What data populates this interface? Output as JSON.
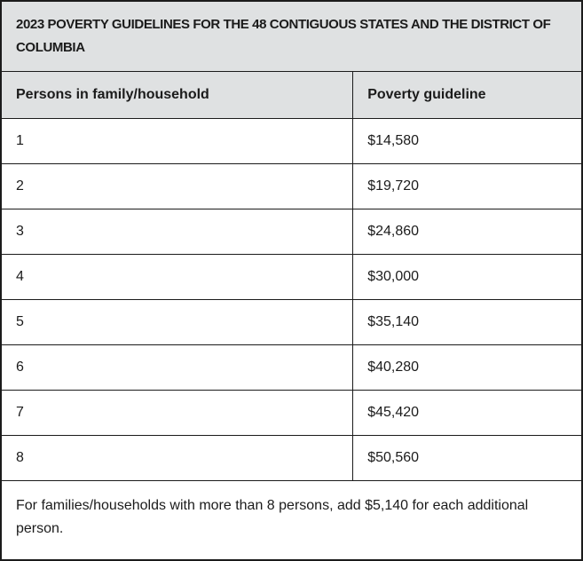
{
  "table": {
    "title": "2023 POVERTY GUIDELINES FOR THE 48 CONTIGUOUS STATES AND THE DISTRICT OF COLUMBIA",
    "columns": {
      "persons": "Persons in family/household",
      "guideline": "Poverty guideline"
    },
    "rows": [
      {
        "persons": "1",
        "guideline": "$14,580"
      },
      {
        "persons": "2",
        "guideline": "$19,720"
      },
      {
        "persons": "3",
        "guideline": "$24,860"
      },
      {
        "persons": "4",
        "guideline": "$30,000"
      },
      {
        "persons": "5",
        "guideline": "$35,140"
      },
      {
        "persons": "6",
        "guideline": "$40,280"
      },
      {
        "persons": "7",
        "guideline": "$45,420"
      },
      {
        "persons": "8",
        "guideline": "$50,560"
      }
    ],
    "footnote": "For families/households with more than 8 persons, add $5,140 for each additional person."
  },
  "colors": {
    "header_background": "#dfe1e2",
    "text": "#1b1b1b",
    "border": "#1b1b1b",
    "row_background": "#ffffff"
  }
}
